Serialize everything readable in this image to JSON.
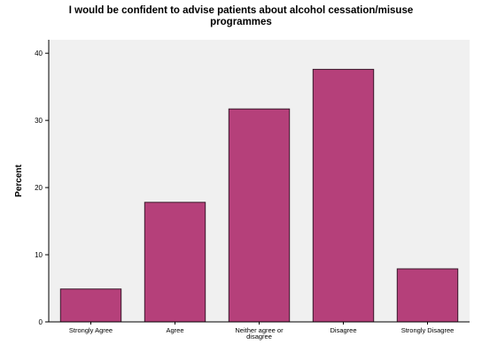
{
  "chart_data": {
    "type": "bar",
    "title_lines": [
      "I would be confident to advise patients about alcohol cessation/misuse",
      "programmes"
    ],
    "xlabel": "",
    "ylabel": "Percent",
    "ylim": [
      0,
      42
    ],
    "yticks": [
      0,
      10,
      20,
      30,
      40
    ],
    "categories": [
      {
        "lines": [
          "Strongly Agree"
        ]
      },
      {
        "lines": [
          "Agree"
        ]
      },
      {
        "lines": [
          "Neither agree or",
          "disagree"
        ]
      },
      {
        "lines": [
          "Disagree"
        ]
      },
      {
        "lines": [
          "Strongly Disagree"
        ]
      }
    ],
    "values": [
      4.9,
      17.8,
      31.7,
      37.6,
      7.9
    ],
    "grid": false,
    "colors": {
      "bar_fill": "#b5407a",
      "bar_stroke": "#3a1a2c",
      "plot_background": "#f0f0f0",
      "axis": "#000000"
    }
  }
}
